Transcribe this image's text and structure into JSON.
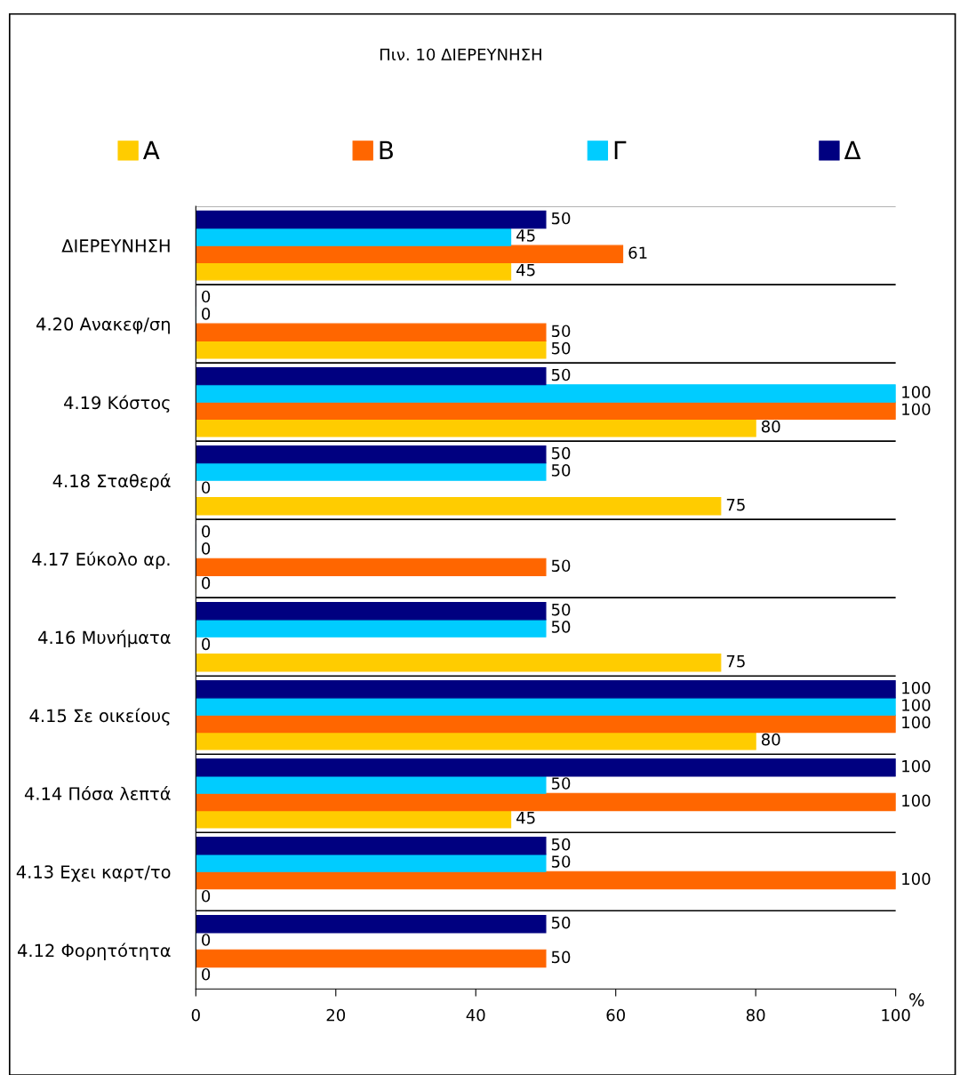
{
  "chart_data": {
    "type": "bar",
    "orientation": "horizontal",
    "title": "Πιν. 10 ΔΙΕΡΕΥΝΗΣΗ",
    "xlabel": "%",
    "categories": [
      "ΔΙΕΡΕΥΝΗΣΗ",
      "4.20 Ανακεφ/ση",
      "4.19 Κόστος",
      "4.18 Σταθερά",
      "4.17 Εύκολο αρ.",
      "4.16 Μυνήματα",
      "4.15 Σε οικείους",
      "4.14 Πόσα λεπτά",
      "4.13 Εχει καρτ/το",
      "4.12 Φορητότητα"
    ],
    "series": [
      {
        "name": "Α",
        "color": "#ffcc00",
        "values": [
          45,
          50,
          80,
          75,
          0,
          75,
          80,
          45,
          0,
          0
        ]
      },
      {
        "name": "Β",
        "color": "#ff6600",
        "values": [
          61,
          50,
          100,
          0,
          50,
          0,
          100,
          100,
          100,
          50
        ]
      },
      {
        "name": "Γ",
        "color": "#00ccff",
        "values": [
          45,
          0,
          100,
          50,
          0,
          50,
          100,
          50,
          50,
          0
        ]
      },
      {
        "name": "Δ",
        "color": "#000080",
        "values": [
          50,
          0,
          50,
          50,
          0,
          50,
          100,
          100,
          50,
          50
        ]
      }
    ],
    "xlim": [
      0,
      100
    ],
    "xticks": [
      0,
      20,
      40,
      60,
      80,
      100
    ],
    "data_labels": true,
    "grid": "y",
    "legend": "top"
  }
}
